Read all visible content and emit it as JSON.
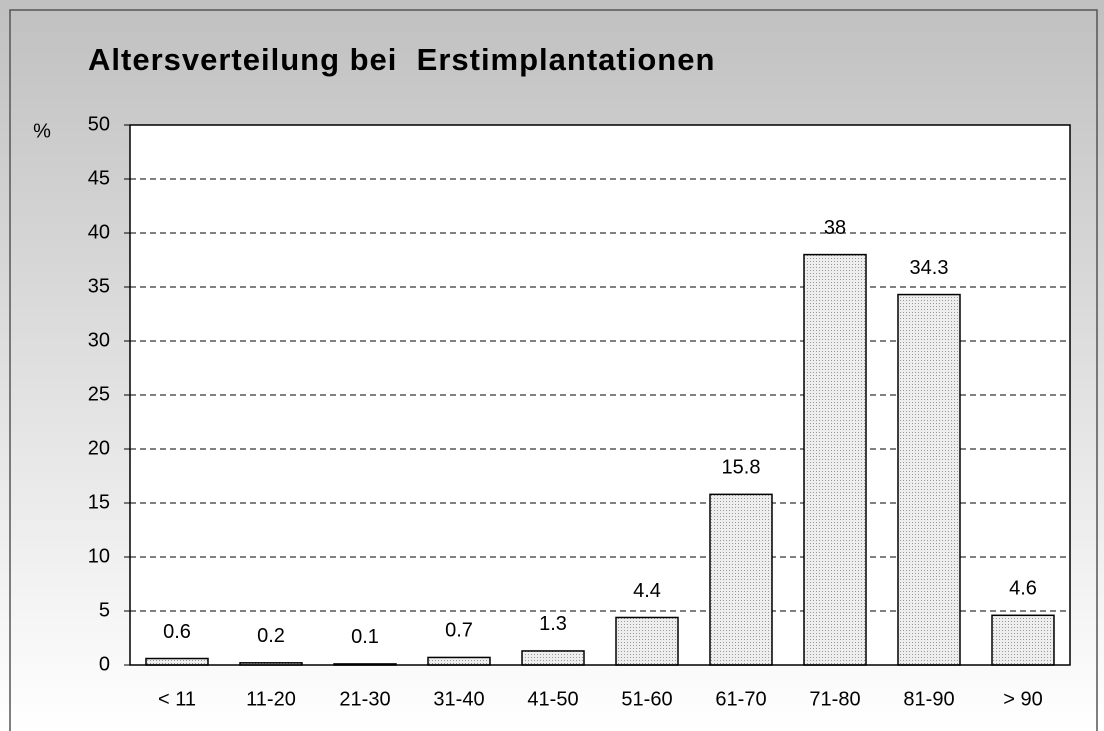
{
  "chart_data": {
    "type": "bar",
    "title": "Altersverteilung bei  Erstimplantationen",
    "y_label": "%",
    "categories": [
      "< 11",
      "11-20",
      "21-30",
      "31-40",
      "41-50",
      "51-60",
      "61-70",
      "71-80",
      "81-90",
      "> 90"
    ],
    "values": [
      0.6,
      0.2,
      0.1,
      0.7,
      1.3,
      4.4,
      15.8,
      38,
      34.3,
      4.6
    ],
    "color": "#e6e6e6",
    "ylim": [
      0,
      50
    ],
    "yticks": [
      0,
      5,
      10,
      15,
      20,
      25,
      30,
      35,
      40,
      45,
      50
    ],
    "grid": true
  }
}
